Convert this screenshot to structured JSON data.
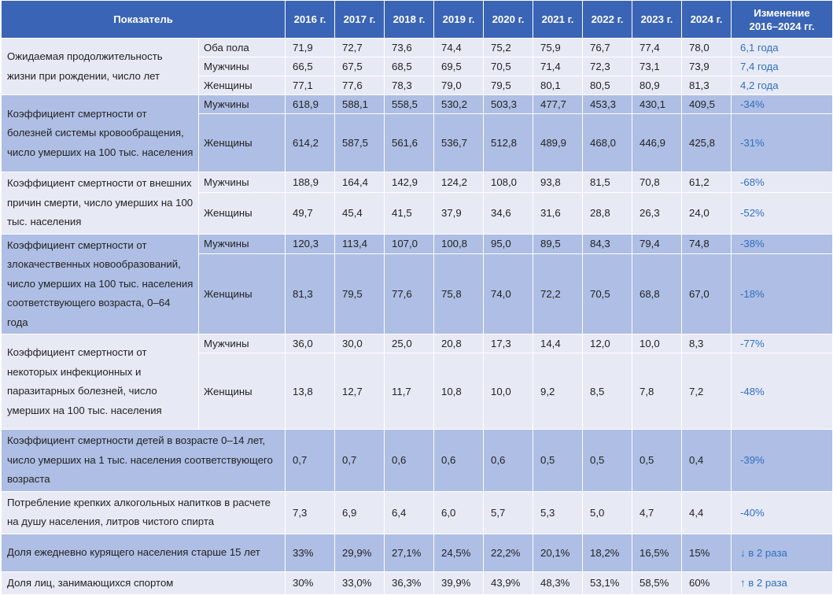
{
  "header": {
    "indicator": "Показатель",
    "years": [
      "2016 г.",
      "2017 г.",
      "2018 г.",
      "2019 г.",
      "2020 г.",
      "2021 г.",
      "2022 г.",
      "2023 г.",
      "2024 г."
    ],
    "change_line1": "Изменение",
    "change_line2": "2016–2024 гг."
  },
  "groups": [
    {
      "band": "light",
      "indicator": "Ожидаемая продолжительность жизни  при рождении, число лет",
      "rows": [
        {
          "sex": "Оба пола",
          "values": [
            "71,9",
            "72,7",
            "73,6",
            "74,4",
            "75,2",
            "75,9",
            "76,7",
            "77,4",
            "78,0"
          ],
          "change": "6,1 года"
        },
        {
          "sex": "Мужчины",
          "values": [
            "66,5",
            "67,5",
            "68,5",
            "69,5",
            "70,5",
            "71,4",
            "72,3",
            "73,1",
            "73,9"
          ],
          "change": "7,4 года"
        },
        {
          "sex": "Женщины",
          "values": [
            "77,1",
            "77,6",
            "78,3",
            "79,0",
            "79,5",
            "80,1",
            "80,5",
            "80,9",
            "81,3"
          ],
          "change": "4,2 года"
        }
      ]
    },
    {
      "band": "dark",
      "indicator": "Коэффициент смертности от болезней системы кровообращения, число умерших на 100 тыс. населения",
      "rows": [
        {
          "sex": "Мужчины",
          "values": [
            "618,9",
            "588,1",
            "558,5",
            "530,2",
            "503,3",
            "477,7",
            "453,3",
            "430,1",
            "409,5"
          ],
          "change": "-34%"
        },
        {
          "sex": "Женщины",
          "values": [
            "614,2",
            "587,5",
            "561,6",
            "536,7",
            "512,8",
            "489,9",
            "468,0",
            "446,9",
            "425,8"
          ],
          "change": "-31%"
        }
      ]
    },
    {
      "band": "light",
      "indicator": "Коэффициент смертности от внешних причин смерти, число умерших на 100 тыс. населения",
      "rows": [
        {
          "sex": "Мужчины",
          "values": [
            "188,9",
            "164,4",
            "142,9",
            "124,2",
            "108,0",
            "93,8",
            "81,5",
            "70,8",
            "61,2"
          ],
          "change": "-68%"
        },
        {
          "sex": "Женщины",
          "values": [
            "49,7",
            "45,4",
            "41,5",
            "37,9",
            "34,6",
            "31,6",
            "28,8",
            "26,3",
            "24,0"
          ],
          "change": "-52%"
        }
      ]
    },
    {
      "band": "dark",
      "indicator": "Коэффициент смертности от злокачественных новообразо­ваний, число умерших на 100 тыс. населения соответствующего воз­раста, 0–64 года",
      "rows": [
        {
          "sex": "Мужчины",
          "values": [
            "120,3",
            "113,4",
            "107,0",
            "100,8",
            "95,0",
            "89,5",
            "84,3",
            "79,4",
            "74,8"
          ],
          "change": "-38%"
        },
        {
          "sex": "Женщины",
          "values": [
            "81,3",
            "79,5",
            "77,6",
            "75,8",
            "74,0",
            "72,2",
            "70,5",
            "68,8",
            "67,0"
          ],
          "change": "-18%"
        }
      ]
    },
    {
      "band": "light",
      "indicator": "Коэффициент смертности от некоторых инфекционных и паразитарных болезней, число умерших на 100 тыс. населения",
      "rows": [
        {
          "sex": "Мужчины",
          "values": [
            "36,0",
            "30,0",
            "25,0",
            "20,8",
            "17,3",
            "14,4",
            "12,0",
            "10,0",
            "8,3"
          ],
          "change": "-77%"
        },
        {
          "sex": "Женщины",
          "values": [
            "13,8",
            "12,7",
            "11,7",
            "10,8",
            "10,0",
            "9,2",
            "8,5",
            "7,8",
            "7,2"
          ],
          "change": "-48%"
        }
      ]
    },
    {
      "band": "dark",
      "indicator": "Коэффициент смертности детей в возрасте 0–14 лет, число умерших на 1 тыс. населения соответствующего возраста",
      "rows": [
        {
          "sex": "",
          "values": [
            "0,7",
            "0,7",
            "0,6",
            "0,6",
            "0,6",
            "0,5",
            "0,5",
            "0,5",
            "0,4"
          ],
          "change": "-39%"
        }
      ]
    },
    {
      "band": "light",
      "indicator": "Потребление крепких алкогольных напитков в расчете на душу населения, литров чистого спирта",
      "rows": [
        {
          "sex": "",
          "values": [
            "7,3",
            "6,9",
            "6,4",
            "6,0",
            "5,7",
            "5,3",
            "5,0",
            "4,7",
            "4,4"
          ],
          "change": "-40%"
        }
      ]
    },
    {
      "band": "dark",
      "indicator": "Доля ежедневно курящего населения старше 15 лет",
      "rows": [
        {
          "sex": "",
          "values": [
            "33%",
            "29,9%",
            "27,1%",
            "24,5%",
            "22,2%",
            "20,1%",
            "18,2%",
            "16,5%",
            "15%"
          ],
          "change": "↓ в 2 раза"
        }
      ]
    },
    {
      "band": "light",
      "indicator": "Доля лиц, занимающихся спортом",
      "rows": [
        {
          "sex": "",
          "values": [
            "30%",
            "33,0%",
            "36,3%",
            "39,9%",
            "43,9%",
            "48,3%",
            "53,1%",
            "58,5%",
            "60%"
          ],
          "change": "↑ в 2 раза"
        }
      ]
    }
  ]
}
